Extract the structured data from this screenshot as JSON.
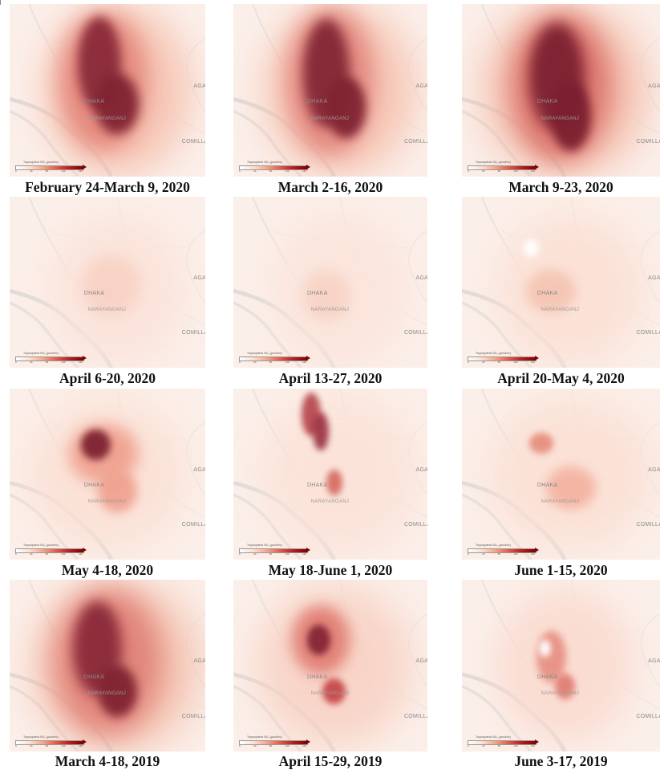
{
  "legend": {
    "title": "Tropospheric NO₂ (µmol/m²)",
    "ticks": [
      "0",
      "40",
      "80",
      "120",
      "160"
    ]
  },
  "map_labels": {
    "dhaka": "DHAKA",
    "narayanganj": "NARAYANGANJ",
    "comilla": "COMILLA",
    "agartala": "AGA"
  },
  "panels": [
    {
      "caption": "February 24-March 9, 2020",
      "intensity": "very-high"
    },
    {
      "caption": "March 2-16, 2020",
      "intensity": "very-high"
    },
    {
      "caption": "March 9-23, 2020",
      "intensity": "very-high"
    },
    {
      "caption": "April 6-20, 2020",
      "intensity": "low"
    },
    {
      "caption": "April 13-27, 2020",
      "intensity": "low"
    },
    {
      "caption": "April 20-May 4, 2020",
      "intensity": "low"
    },
    {
      "caption": "May 4-18, 2020",
      "intensity": "moderate"
    },
    {
      "caption": "May 18-June 1, 2020",
      "intensity": "moderate"
    },
    {
      "caption": "June 1-15, 2020",
      "intensity": "low-moderate"
    },
    {
      "caption": "March 4-18, 2019",
      "intensity": "very-high"
    },
    {
      "caption": "April 15-29, 2019",
      "intensity": "high"
    },
    {
      "caption": "June 3-17, 2019",
      "intensity": "moderate"
    }
  ],
  "colors": {
    "low": "#fdeee8",
    "mid": "#f0a48f",
    "high": "#c23a3a",
    "max": "#7a1e2a"
  }
}
